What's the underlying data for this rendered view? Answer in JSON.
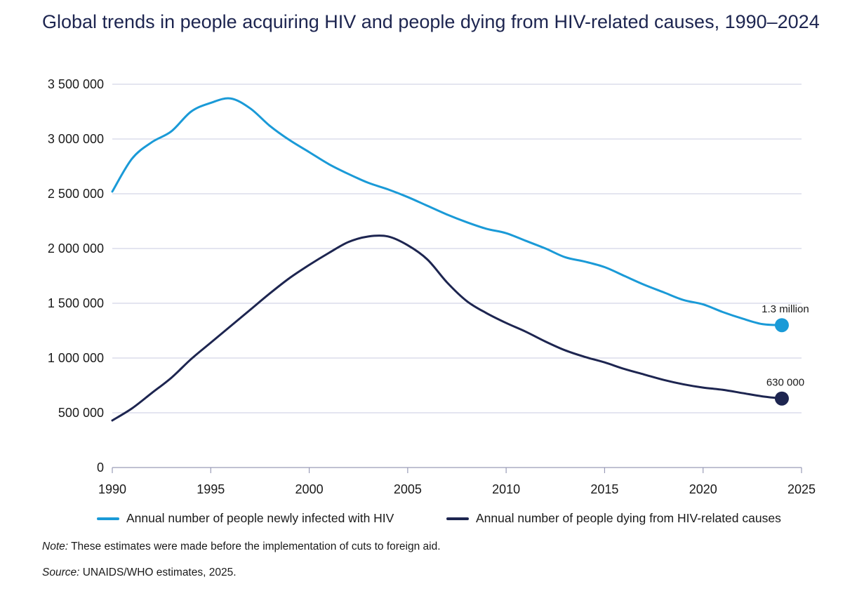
{
  "title": "Global trends in people acquiring HIV and people dying from HIV-related causes, 1990–2024",
  "note": {
    "label": "Note:",
    "text": " These estimates were made before the implementation of cuts to foreign aid."
  },
  "source": {
    "label": "Source:",
    "text": " UNAIDS/WHO estimates, 2025."
  },
  "colors": {
    "infections": "#1a9ad7",
    "deaths": "#1d2550",
    "grid": "#c9cbe0",
    "axis": "#9a9cb8"
  },
  "chart_data": {
    "type": "line",
    "xlim": [
      1990,
      2025
    ],
    "ylim": [
      0,
      3500000
    ],
    "x_ticks": [
      1990,
      1995,
      2000,
      2005,
      2010,
      2015,
      2020,
      2025
    ],
    "x_tick_labels": [
      "1990",
      "1995",
      "2000",
      "2005",
      "2010",
      "2015",
      "2020",
      "2025"
    ],
    "y_ticks": [
      0,
      500000,
      1000000,
      1500000,
      2000000,
      2500000,
      3000000,
      3500000
    ],
    "y_tick_labels": [
      "0",
      "500 000",
      "1 000 000",
      "1 500 000",
      "2 000 000",
      "2 500 000",
      "3 000 000",
      "3 500 000"
    ],
    "grid": "horizontal",
    "legend_position": "bottom",
    "x": [
      1990,
      1991,
      1992,
      1993,
      1994,
      1995,
      1996,
      1997,
      1998,
      1999,
      2000,
      2001,
      2002,
      2003,
      2004,
      2005,
      2006,
      2007,
      2008,
      2009,
      2010,
      2011,
      2012,
      2013,
      2014,
      2015,
      2016,
      2017,
      2018,
      2019,
      2020,
      2021,
      2022,
      2023,
      2024
    ],
    "series": [
      {
        "name": "Annual number of people newly infected with HIV",
        "color": "#1a9ad7",
        "values": [
          2520000,
          2820000,
          2970000,
          3070000,
          3250000,
          3330000,
          3370000,
          3280000,
          3120000,
          2990000,
          2880000,
          2770000,
          2680000,
          2600000,
          2540000,
          2470000,
          2390000,
          2310000,
          2240000,
          2180000,
          2140000,
          2070000,
          2000000,
          1920000,
          1880000,
          1830000,
          1750000,
          1670000,
          1600000,
          1530000,
          1490000,
          1420000,
          1360000,
          1310000,
          1300000
        ],
        "end_label": "1.3 million"
      },
      {
        "name": "Annual number of people dying from HIV-related causes",
        "color": "#1d2550",
        "values": [
          430000,
          540000,
          680000,
          820000,
          990000,
          1140000,
          1290000,
          1440000,
          1590000,
          1730000,
          1850000,
          1960000,
          2060000,
          2110000,
          2110000,
          2030000,
          1900000,
          1690000,
          1520000,
          1410000,
          1320000,
          1240000,
          1150000,
          1070000,
          1010000,
          960000,
          900000,
          850000,
          800000,
          760000,
          730000,
          710000,
          680000,
          650000,
          630000
        ],
        "end_label": "630 000"
      }
    ]
  }
}
